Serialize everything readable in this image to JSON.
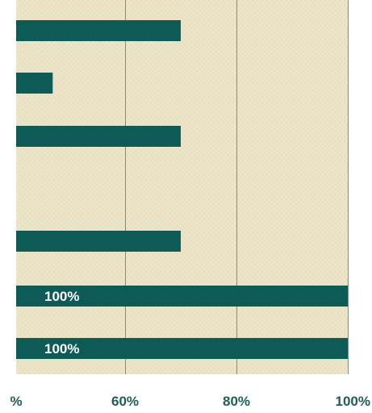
{
  "chart_data": {
    "type": "bar",
    "orientation": "horizontal",
    "title": "",
    "xlabel": "",
    "ylabel": "",
    "xlim": [
      40,
      100
    ],
    "grid": true,
    "legend": "none",
    "x_ticks": [
      {
        "value": 40,
        "label": "%"
      },
      {
        "value": 60,
        "label": "60%"
      },
      {
        "value": 80,
        "label": "80%"
      },
      {
        "value": 100,
        "label": "100%"
      }
    ],
    "bars": [
      {
        "value": 70,
        "label": ""
      },
      {
        "value": 47,
        "label": ""
      },
      {
        "value": 70,
        "label": ""
      },
      {
        "value": null,
        "label": ""
      },
      {
        "value": 70,
        "label": ""
      },
      {
        "value": 100,
        "label": "100%"
      },
      {
        "value": 100,
        "label": "100%"
      }
    ],
    "colors": {
      "bar": "#0e5a56",
      "plot_background": "#ece5c8",
      "gridline": "#8a8a7e",
      "tick_label": "#1f5d57",
      "data_label": "#ffffff"
    }
  }
}
